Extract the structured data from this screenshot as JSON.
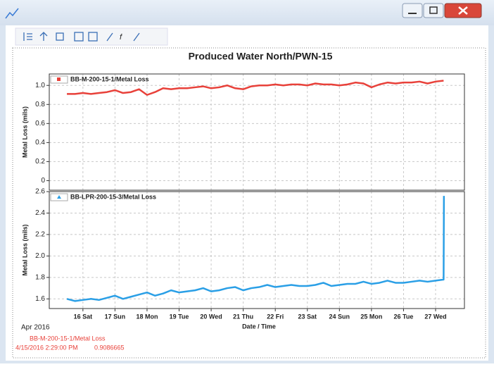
{
  "title": "Produced Water North/PWN-15",
  "x_axis": {
    "label": "Date / Time",
    "period": "Apr 2016",
    "xlim": [
      14.95,
      27.9
    ],
    "xticks": [
      {
        "value": 16,
        "label": "16 Sat"
      },
      {
        "value": 17,
        "label": "17 Sun"
      },
      {
        "value": 18,
        "label": "18 Mon"
      },
      {
        "value": 19,
        "label": "19 Tue"
      },
      {
        "value": 20,
        "label": "20 Wed"
      },
      {
        "value": 21,
        "label": "21 Thu"
      },
      {
        "value": 22,
        "label": "22 Fri"
      },
      {
        "value": 23,
        "label": "23 Sat"
      },
      {
        "value": 24,
        "label": "24 Sun"
      },
      {
        "value": 25,
        "label": "25 Mon"
      },
      {
        "value": 26,
        "label": "26 Tue"
      },
      {
        "value": 27,
        "label": "27 Wed"
      }
    ]
  },
  "chart_data": [
    {
      "type": "line",
      "ylabel": "Metal Loss (mils)",
      "ylim": [
        -0.1,
        1.12
      ],
      "yticks": [
        0,
        0.2,
        0.4,
        0.6,
        0.8,
        {
          "value": 1,
          "label": "1.0"
        }
      ],
      "grid": true,
      "x": [
        15.5,
        15.75,
        16,
        16.25,
        16.5,
        16.75,
        17,
        17.25,
        17.5,
        17.75,
        18,
        18.25,
        18.5,
        18.75,
        19,
        19.25,
        19.5,
        19.75,
        20,
        20.25,
        20.5,
        20.75,
        21,
        21.25,
        21.5,
        21.75,
        22,
        22.25,
        22.5,
        22.75,
        23,
        23.25,
        23.5,
        23.75,
        24,
        24.25,
        24.5,
        24.75,
        25,
        25.25,
        25.5,
        25.75,
        26,
        26.25,
        26.5,
        26.75,
        27,
        27.25
      ],
      "series": [
        {
          "name": "BB-M-200-15-1/Metal Loss",
          "color": "#e8413a",
          "values": [
            0.91,
            0.91,
            0.92,
            0.91,
            0.92,
            0.93,
            0.95,
            0.92,
            0.93,
            0.96,
            0.9,
            0.93,
            0.97,
            0.96,
            0.97,
            0.97,
            0.98,
            0.99,
            0.97,
            0.98,
            1.0,
            0.97,
            0.96,
            0.99,
            1.0,
            1.0,
            1.01,
            1.0,
            1.01,
            1.01,
            1.0,
            1.02,
            1.01,
            1.01,
            1.0,
            1.01,
            1.03,
            1.02,
            0.98,
            1.01,
            1.03,
            1.02,
            1.03,
            1.03,
            1.04,
            1.02,
            1.04,
            1.05
          ]
        }
      ]
    },
    {
      "type": "line",
      "ylabel": "Metal Loss (mils)",
      "ylim": [
        1.51,
        2.6
      ],
      "yticks": [
        1.6,
        1.8,
        {
          "value": 2,
          "label": "2.0"
        },
        2.2,
        2.4,
        2.6
      ],
      "grid": true,
      "x": [
        15.5,
        15.75,
        16,
        16.25,
        16.5,
        16.75,
        17,
        17.25,
        17.5,
        17.75,
        18,
        18.25,
        18.5,
        18.75,
        19,
        19.25,
        19.5,
        19.75,
        20,
        20.25,
        20.5,
        20.75,
        21,
        21.25,
        21.5,
        21.75,
        22,
        22.25,
        22.5,
        22.75,
        23,
        23.25,
        23.5,
        23.75,
        24,
        24.25,
        24.5,
        24.75,
        25,
        25.25,
        25.5,
        25.75,
        26,
        26.25,
        26.5,
        26.75,
        27,
        27.25,
        27.26
      ],
      "series": [
        {
          "name": "BB-LPR-200-15-3/Metal Loss",
          "color": "#2a9fe6",
          "values": [
            1.6,
            1.58,
            1.59,
            1.6,
            1.59,
            1.61,
            1.63,
            1.6,
            1.62,
            1.64,
            1.66,
            1.63,
            1.65,
            1.68,
            1.66,
            1.67,
            1.68,
            1.7,
            1.67,
            1.68,
            1.7,
            1.71,
            1.68,
            1.7,
            1.71,
            1.73,
            1.71,
            1.72,
            1.73,
            1.72,
            1.72,
            1.73,
            1.75,
            1.72,
            1.73,
            1.74,
            1.74,
            1.76,
            1.74,
            1.75,
            1.77,
            1.75,
            1.75,
            1.76,
            1.77,
            1.76,
            1.77,
            1.78,
            2.56
          ]
        }
      ]
    }
  ],
  "readout": {
    "series": "BB-M-200-15-1/Metal Loss",
    "time": "4/15/2016 2:29:00 PM",
    "value": 0.9086665
  }
}
